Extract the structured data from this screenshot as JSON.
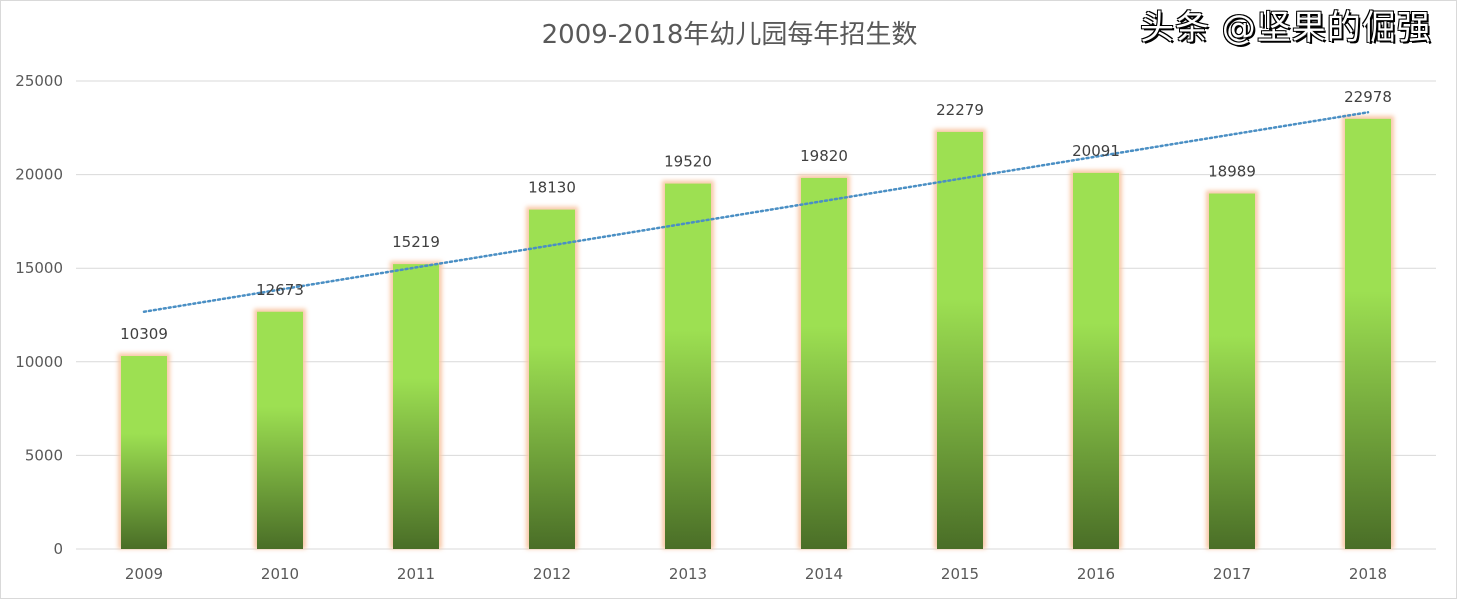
{
  "chart_data": {
    "type": "bar",
    "title": "2009-2018年幼儿园每年招生数",
    "categories": [
      "2009",
      "2010",
      "2011",
      "2012",
      "2013",
      "2014",
      "2015",
      "2016",
      "2017",
      "2018"
    ],
    "values": [
      10309,
      12673,
      15219,
      18130,
      19520,
      19820,
      22279,
      20091,
      18989,
      22978
    ],
    "ylim": [
      0,
      25000
    ],
    "yticks": [
      0,
      5000,
      10000,
      15000,
      20000,
      25000
    ],
    "grid": true,
    "legend": "none",
    "trendline": "linear",
    "colors": {
      "bar_top": "#9de052",
      "bar_bottom": "#4a6e27",
      "bar_glow": "#f8c9a8",
      "trendline": "#4a8fc4",
      "grid": "#d9d9d9"
    }
  },
  "watermark": "头条 @坚果的倔强"
}
